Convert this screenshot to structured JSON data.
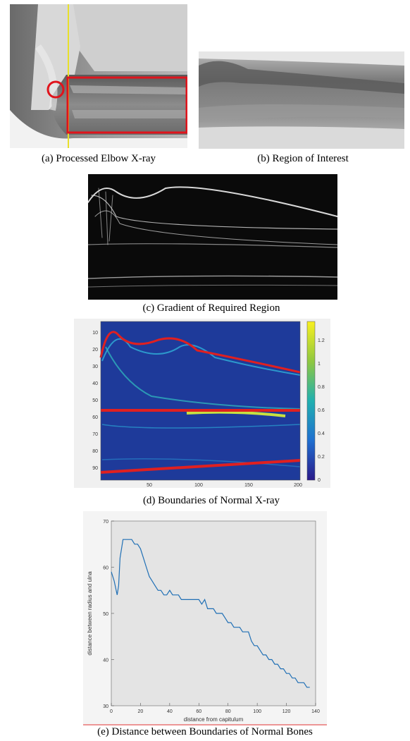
{
  "captions": {
    "a": "(a) Processed Elbow X-ray",
    "b": "(b) Region of Interest",
    "c": "(c) Gradient of Required Region",
    "d": "(d) Boundaries of Normal X-ray",
    "e": "(e) Distance between Boundaries of Normal Bones"
  },
  "colors": {
    "roi_box": "#e0141c",
    "yellow_line": "#e8e02a",
    "boundary": "#e02020",
    "heatmap_bg": "#1e3a9a",
    "plot_line": "#1f6fb5",
    "plot_bg": "#e4e4e4"
  },
  "heatmap": {
    "y_ticks": [
      "10",
      "20",
      "30",
      "40",
      "50",
      "60",
      "70",
      "80",
      "90"
    ],
    "x_ticks": [
      "50",
      "100",
      "150",
      "200"
    ],
    "colorbar_ticks": [
      "1.2",
      "1",
      "0.8",
      "0.6",
      "0.4",
      "0.2",
      "0"
    ]
  },
  "chart_data": {
    "type": "line",
    "xlabel": "distance from capitulum",
    "ylabel": "distance between radius and ulna",
    "xlim": [
      0,
      140
    ],
    "ylim": [
      30,
      70
    ],
    "x_ticks": [
      "0",
      "20",
      "40",
      "60",
      "80",
      "100",
      "120",
      "140"
    ],
    "y_ticks": [
      "30",
      "40",
      "50",
      "60",
      "70"
    ],
    "grid": false,
    "series": [
      {
        "x": [
          0,
          2,
          4,
          5,
          6,
          8,
          10,
          14,
          16,
          18,
          20,
          22,
          24,
          26,
          28,
          30,
          32,
          34,
          36,
          38,
          40,
          42,
          44,
          46,
          48,
          50,
          52,
          54,
          56,
          58,
          60,
          62,
          64,
          66,
          68,
          70,
          72,
          74,
          76,
          78,
          80,
          82,
          84,
          86,
          88,
          90,
          92,
          94,
          96,
          98,
          100,
          102,
          104,
          106,
          108,
          110,
          112,
          114,
          116,
          118,
          120,
          122,
          124,
          126,
          128,
          130,
          132,
          134,
          136
        ],
        "y": [
          59,
          57,
          54,
          56,
          62,
          66,
          66,
          66,
          65,
          65,
          64,
          62,
          60,
          58,
          57,
          56,
          55,
          55,
          54,
          54,
          55,
          54,
          54,
          54,
          53,
          53,
          53,
          53,
          53,
          53,
          53,
          52,
          53,
          51,
          51,
          51,
          50,
          50,
          50,
          49,
          48,
          48,
          47,
          47,
          47,
          46,
          46,
          46,
          44,
          43,
          43,
          42,
          41,
          41,
          40,
          40,
          39,
          39,
          38,
          38,
          37,
          37,
          36,
          36,
          35,
          35,
          35,
          34,
          34
        ]
      }
    ]
  }
}
